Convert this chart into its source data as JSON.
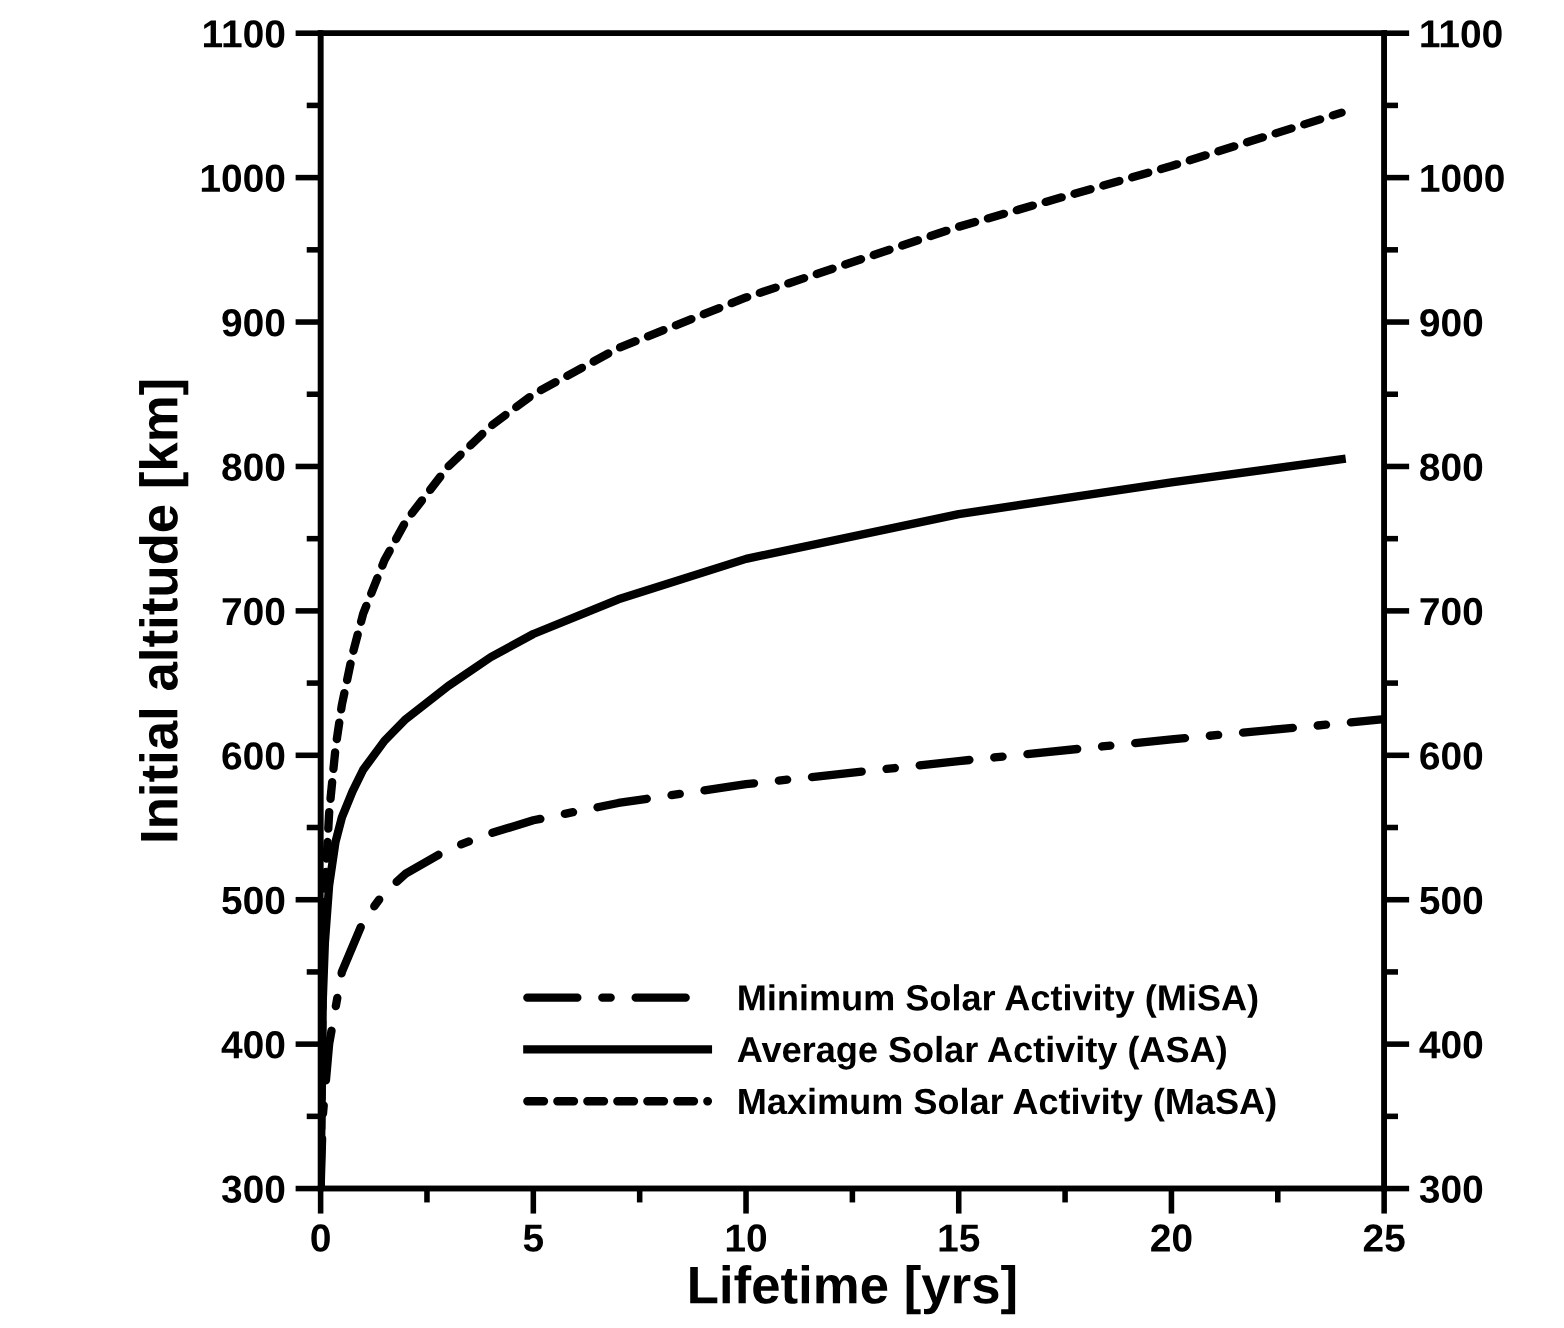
{
  "chart_data": {
    "type": "line",
    "xlabel": "Lifetime [yrs]",
    "ylabel": "Initial altitude [km]",
    "xlim": [
      0,
      25
    ],
    "ylim": [
      300,
      1100
    ],
    "y2lim": [
      300,
      1100
    ],
    "xticks": [
      0,
      {
        "value": 2.5,
        "label": null
      },
      5,
      {
        "value": 7.5,
        "label": null
      },
      10,
      {
        "value": 12.5,
        "label": null
      },
      15,
      {
        "value": 17.5,
        "label": null
      },
      20,
      {
        "value": 22.5,
        "label": null
      },
      25
    ],
    "yticks": [
      300,
      {
        "value": 350,
        "label": null
      },
      400,
      {
        "value": 450,
        "label": null
      },
      500,
      {
        "value": 550,
        "label": null
      },
      600,
      {
        "value": 650,
        "label": null
      },
      700,
      {
        "value": 750,
        "label": null
      },
      800,
      {
        "value": 850,
        "label": null
      },
      900,
      {
        "value": 950,
        "label": null
      },
      1000,
      {
        "value": 1050,
        "label": null
      },
      1100
    ],
    "y2ticks": [
      300,
      {
        "value": 350,
        "label": null
      },
      400,
      {
        "value": 450,
        "label": null
      },
      500,
      {
        "value": 550,
        "label": null
      },
      600,
      {
        "value": 650,
        "label": null
      },
      700,
      {
        "value": 750,
        "label": null
      },
      800,
      {
        "value": 850,
        "label": null
      },
      900,
      {
        "value": 950,
        "label": null
      },
      1000,
      {
        "value": 1050,
        "label": null
      },
      1100
    ],
    "grid": false,
    "legend": "bottom right",
    "series": [
      {
        "name": "Minimum Solar Activity (MiSA)",
        "color": "#000000",
        "line_style": "dashdot",
        "x": [
          0,
          0.05,
          0.2,
          0.5,
          1,
          1.5,
          2,
          3,
          4,
          5,
          7,
          10,
          15,
          20,
          25
        ],
        "values": [
          300,
          350,
          400,
          450,
          485,
          505,
          518,
          535,
          546,
          555,
          567,
          580,
          596,
          611,
          625
        ]
      },
      {
        "name": "Average Solar Activity (ASA)",
        "color": "#000000",
        "line_style": "solid",
        "x": [
          0,
          0.05,
          0.1,
          0.2,
          0.35,
          0.5,
          0.75,
          1,
          1.5,
          2,
          3,
          4,
          5,
          7,
          10,
          15,
          20,
          24
        ],
        "values": [
          300,
          430,
          470,
          510,
          540,
          557,
          575,
          590,
          610,
          625,
          648,
          668,
          684,
          708,
          736,
          767,
          789,
          805
        ]
      },
      {
        "name": "Maximum Solar Activity (MaSA)",
        "color": "#000000",
        "line_style": "dotted",
        "x": [
          0,
          0.05,
          0.1,
          0.2,
          0.35,
          0.5,
          0.75,
          1,
          1.5,
          2,
          3,
          4,
          5,
          7,
          10,
          15,
          20,
          24
        ],
        "values": [
          300,
          450,
          505,
          560,
          605,
          635,
          670,
          698,
          735,
          762,
          800,
          828,
          850,
          882,
          917,
          966,
          1008,
          1045
        ]
      }
    ]
  }
}
